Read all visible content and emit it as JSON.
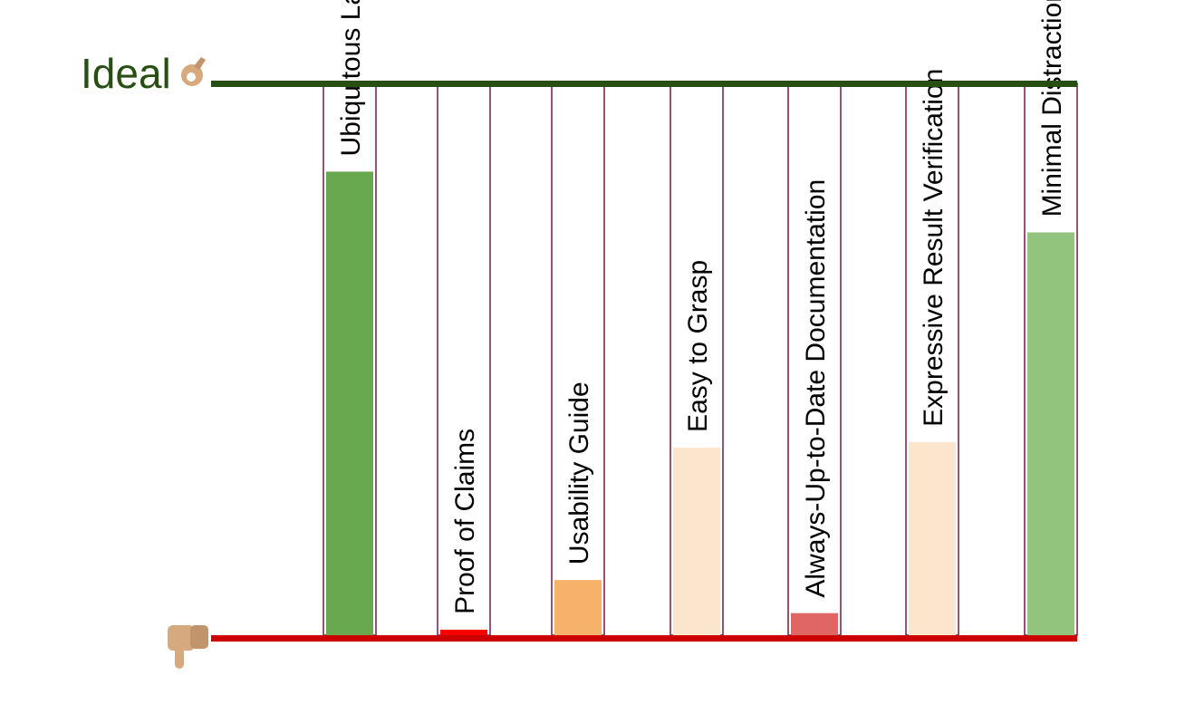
{
  "chart_data": {
    "type": "bar",
    "top_label": "Ideal",
    "top_icon": "ok-hand-icon",
    "bottom_icon": "thumbs-down-icon",
    "ylim": [
      0,
      100
    ],
    "grid": false,
    "categories": [
      "Ubiquitous Language (DDD)",
      "Proof of Claims",
      "Usability Guide",
      "Easy to Grasp",
      "Always-Up-to-Date Documentation",
      "Expressive Result Verification",
      "Minimal Distraction"
    ],
    "values": [
      84,
      1,
      10,
      34,
      4,
      35,
      73
    ],
    "bar_colors": [
      "#6aa84f",
      "#ff0000",
      "#f6b26b",
      "#fce5cd",
      "#e06666",
      "#fce5cd",
      "#93c47d"
    ],
    "colors": {
      "ideal_line": "#274e13",
      "bottom_line": "#cc0000",
      "column_border": "#741b47"
    }
  }
}
